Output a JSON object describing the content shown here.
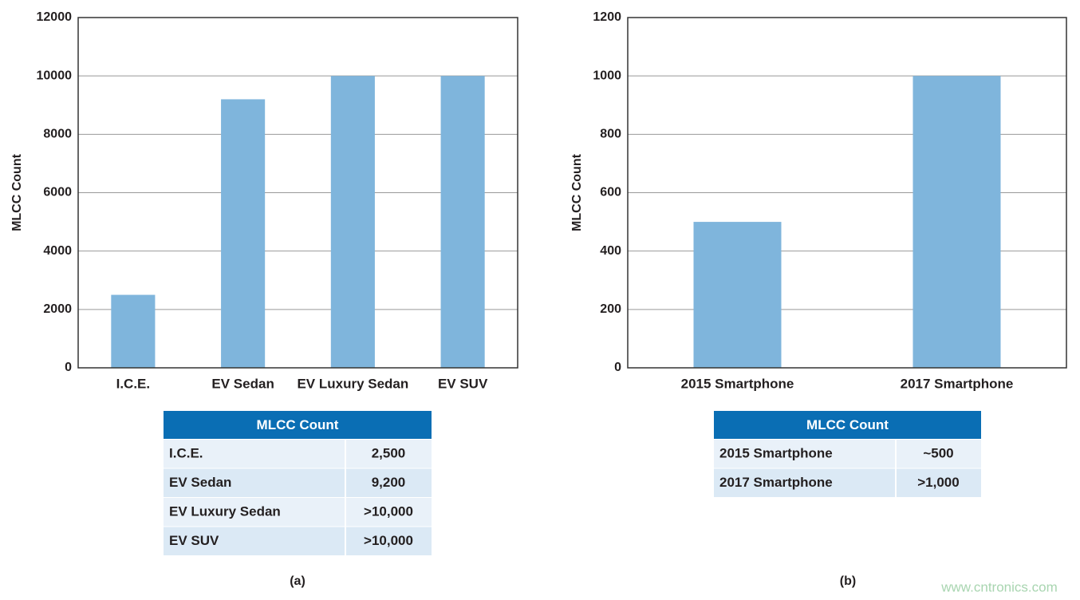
{
  "chart_data": [
    {
      "type": "bar",
      "y_label": "MLCC Count",
      "categories": [
        "I.C.E.",
        "EV Sedan",
        "EV Luxury Sedan",
        "EV SUV"
      ],
      "values": [
        2500,
        9200,
        10000,
        10000
      ],
      "color": "#7fb5dc",
      "ylim": [
        0,
        12000
      ],
      "yticks": [
        0,
        2000,
        4000,
        6000,
        8000,
        10000,
        12000
      ],
      "grid": true,
      "table": {
        "header": "MLCC Count",
        "rows": [
          [
            "I.C.E.",
            "2,500"
          ],
          [
            "EV Sedan",
            "9,200"
          ],
          [
            "EV Luxury Sedan",
            ">10,000"
          ],
          [
            "EV SUV",
            ">10,000"
          ]
        ]
      },
      "caption": "(a)"
    },
    {
      "type": "bar",
      "y_label": "MLCC Count",
      "categories": [
        "2015 Smartphone",
        "2017 Smartphone"
      ],
      "values": [
        500,
        1000
      ],
      "color": "#7fb5dc",
      "ylim": [
        0,
        1200
      ],
      "yticks": [
        0,
        200,
        400,
        600,
        800,
        1000,
        1200
      ],
      "grid": true,
      "table": {
        "header": "MLCC Count",
        "rows": [
          [
            "2015 Smartphone",
            "~500"
          ],
          [
            "2017 Smartphone",
            ">1,000"
          ]
        ]
      },
      "caption": "(b)"
    }
  ],
  "watermark": "www.cntronics.com"
}
